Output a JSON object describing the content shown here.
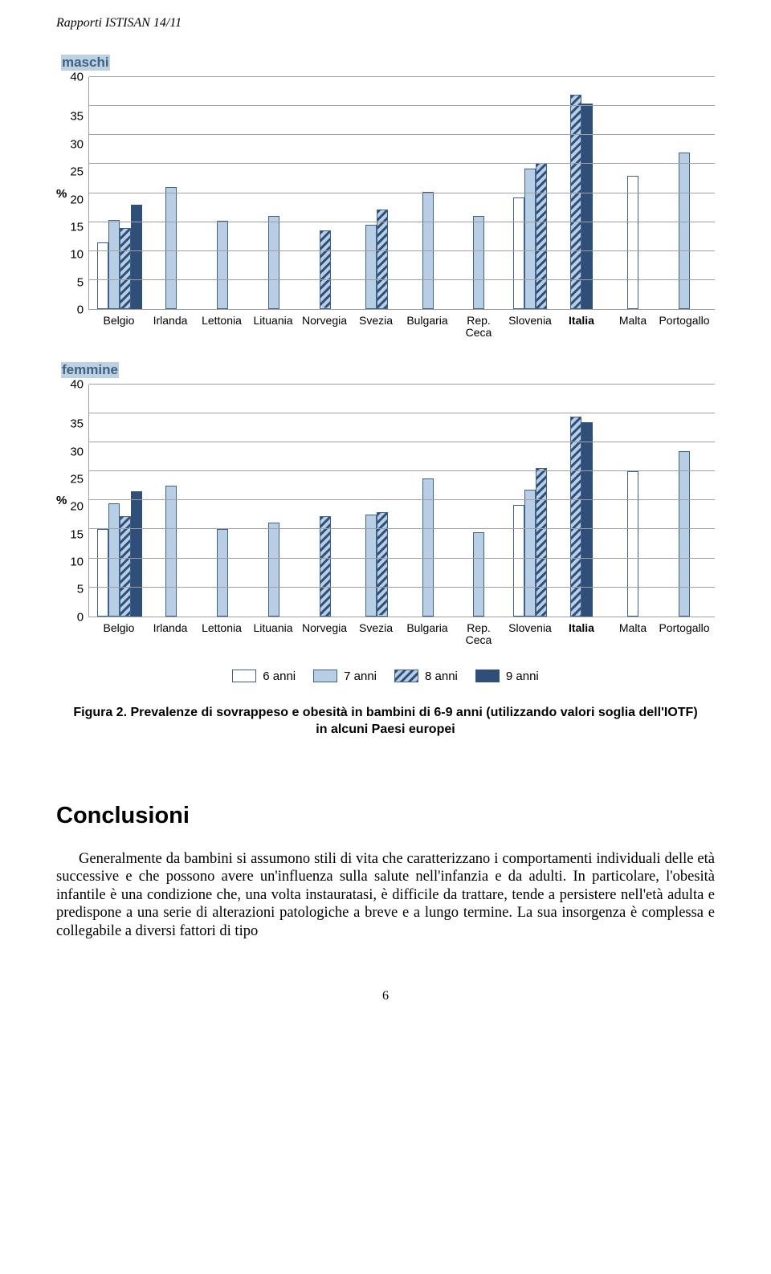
{
  "header": {
    "title": "Rapporti ISTISAN 14/11"
  },
  "charts": {
    "type": "grouped-bar",
    "ymax": 40,
    "ytick_step": 5,
    "yticks": [
      40,
      35,
      30,
      25,
      20,
      15,
      10,
      5,
      0
    ],
    "y_axis_label": "%",
    "grid_color": "#a0a0a0",
    "categories": [
      "Belgio",
      "Irlanda",
      "Lettonia",
      "Lituania",
      "Norvegia",
      "Svezia",
      "Bulgaria",
      "Rep. Ceca",
      "Slovenia",
      "Italia",
      "Malta",
      "Portogallo"
    ],
    "bold_categories": [
      "Italia"
    ],
    "series": [
      {
        "key": "6anni",
        "label": "6 anni",
        "fill_type": "solid",
        "color": "#ffffff",
        "border": "#3f6088"
      },
      {
        "key": "7anni",
        "label": "7 anni",
        "fill_type": "solid",
        "color": "#b7cee5",
        "border": "#3f6088"
      },
      {
        "key": "8anni",
        "label": "8 anni",
        "fill_type": "hatched",
        "color": "#b7cee5",
        "hatch": "#2f4f78",
        "border": "#3f6088"
      },
      {
        "key": "9anni",
        "label": "9 anni",
        "fill_type": "solid",
        "color": "#2f4f78",
        "border": "#2f4f78"
      }
    ],
    "maschi": {
      "label": "maschi",
      "data": {
        "6anni": {
          "Belgio": 11.5,
          "Slovenia": 19.2,
          "Malta": 23
        },
        "7anni": {
          "Belgio": 15.3,
          "Irlanda": 21,
          "Lettonia": 15.2,
          "Lituania": 16,
          "Svezia": 14.5,
          "Bulgaria": 20.2,
          "Rep. Ceca": 16,
          "Slovenia": 24.2,
          "Portogallo": 27
        },
        "8anni": {
          "Belgio": 14,
          "Norvegia": 13.5,
          "Svezia": 17.2,
          "Slovenia": 25.2,
          "Italia": 37
        },
        "9anni": {
          "Belgio": 18,
          "Italia": 35.5
        }
      }
    },
    "femmine": {
      "label": "femmine",
      "data": {
        "6anni": {
          "Belgio": 15,
          "Slovenia": 19.2,
          "Malta": 25
        },
        "7anni": {
          "Belgio": 19.5,
          "Irlanda": 22.5,
          "Lettonia": 15,
          "Lituania": 16.2,
          "Svezia": 17.6,
          "Bulgaria": 23.8,
          "Rep. Ceca": 14.5,
          "Slovenia": 21.8,
          "Portogallo": 28.5
        },
        "8anni": {
          "Belgio": 17.3,
          "Norvegia": 17.3,
          "Svezia": 17.9,
          "Slovenia": 25.6,
          "Italia": 34.5
        },
        "9anni": {
          "Belgio": 21.5,
          "Italia": 33.5
        }
      }
    }
  },
  "figure_caption": "Figura 2. Prevalenze di sovrappeso e obesità in bambini di 6-9 anni (utilizzando valori soglia dell'IOTF) in alcuni Paesi europei",
  "conclusions": {
    "heading": "Conclusioni",
    "paragraph": "Generalmente da bambini si assumono stili di vita che caratterizzano i comportamenti individuali delle età successive e che possono avere un'influenza sulla salute nell'infanzia e da adulti. In particolare, l'obesità infantile è una condizione che, una volta instauratasi, è difficile da trattare, tende a persistere nell'età adulta e predispone a una serie di alterazioni patologiche a breve e a lungo termine. La sua insorgenza è complessa e collegabile a diversi fattori di tipo"
  },
  "page_number": "6"
}
